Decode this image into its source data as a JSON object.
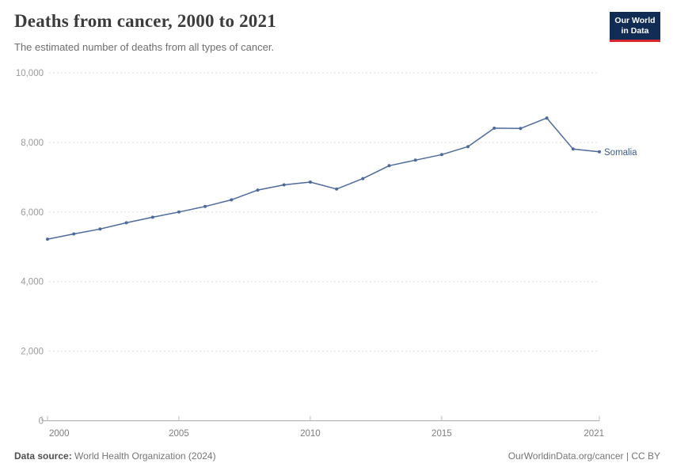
{
  "header": {
    "title": "Deaths from cancer, 2000 to 2021",
    "subtitle": "The estimated number of deaths from all types of cancer.",
    "logo": {
      "line1": "Our World",
      "line2": "in Data",
      "bg_color": "#122d55",
      "accent_color": "#d9252e"
    }
  },
  "chart_data": {
    "type": "line",
    "title": "Deaths from cancer, 2000 to 2021",
    "subtitle": "The estimated number of deaths from all types of cancer.",
    "xlabel": "",
    "ylabel": "",
    "xlim": [
      2000,
      2021
    ],
    "ylim": [
      0,
      10000
    ],
    "grid": "horizontal-dashed",
    "legend_position": "end-of-line-label",
    "x_ticks": [
      {
        "value": 2000,
        "label": "2000"
      },
      {
        "value": 2005,
        "label": "2005"
      },
      {
        "value": 2010,
        "label": "2010"
      },
      {
        "value": 2015,
        "label": "2015"
      },
      {
        "value": 2021,
        "label": "2021"
      }
    ],
    "y_ticks": [
      {
        "value": 0,
        "label": "0"
      },
      {
        "value": 2000,
        "label": "2,000"
      },
      {
        "value": 4000,
        "label": "4,000"
      },
      {
        "value": 6000,
        "label": "6,000"
      },
      {
        "value": 8000,
        "label": "8,000"
      },
      {
        "value": 10000,
        "label": "10,000"
      }
    ],
    "series": [
      {
        "name": "Somalia",
        "color": "#4c6a9c",
        "label_color": "#3d5c8f",
        "x": [
          2000,
          2001,
          2002,
          2003,
          2004,
          2005,
          2006,
          2007,
          2008,
          2009,
          2010,
          2011,
          2012,
          2013,
          2014,
          2015,
          2016,
          2017,
          2018,
          2019,
          2020,
          2021
        ],
        "values": [
          5220,
          5370,
          5510,
          5690,
          5850,
          6000,
          6160,
          6350,
          6630,
          6780,
          6860,
          6660,
          6960,
          7330,
          7490,
          7650,
          7880,
          8410,
          8400,
          8700,
          7810,
          7730
        ]
      }
    ]
  },
  "footer": {
    "source_label": "Data source:",
    "source_value": "World Health Organization (2024)",
    "credit": "OurWorldinData.org/cancer | CC BY"
  }
}
